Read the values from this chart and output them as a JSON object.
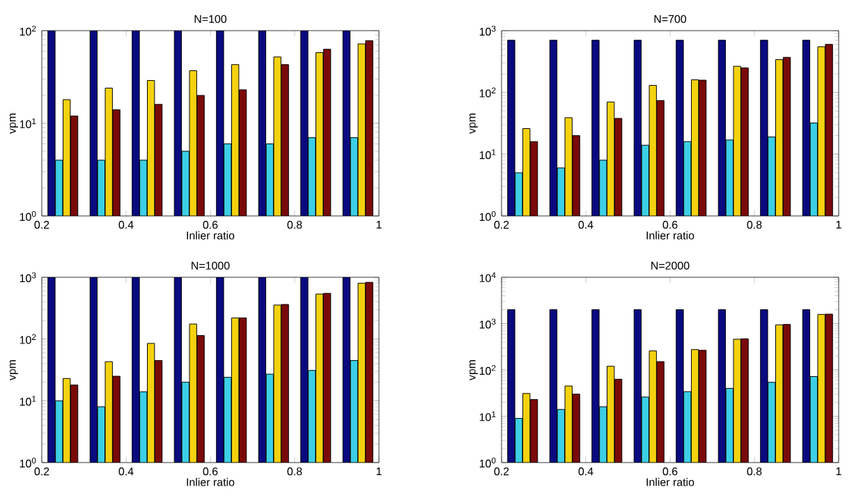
{
  "chart_data": [
    {
      "type": "bar",
      "title": "N=100",
      "xlabel": "Inlier ratio",
      "ylabel": "vpm",
      "log": "y",
      "xlim": [
        0.2,
        1
      ],
      "xticks": [
        0.2,
        0.4,
        0.6,
        0.8,
        1
      ],
      "ylim": [
        1,
        100
      ],
      "yticks": [
        {
          "value": 1,
          "label": "10$^{0}$"
        },
        {
          "value": 10,
          "label": "10$^{1}$"
        },
        {
          "value": 100,
          "label": "10$^{2}$"
        }
      ],
      "x": [
        0.25,
        0.35,
        0.45,
        0.55,
        0.65,
        0.75,
        0.85,
        0.95
      ],
      "series": [
        {
          "color": "#0a0a80",
          "values": [
            100,
            100,
            100,
            100,
            100,
            100,
            100,
            100
          ]
        },
        {
          "color": "#3ccfe6",
          "values": [
            4,
            4,
            4,
            5,
            6,
            6,
            7,
            7
          ]
        },
        {
          "color": "#f5d20f",
          "values": [
            18,
            24,
            29,
            37,
            43,
            52,
            58,
            72
          ]
        },
        {
          "color": "#7a0a0a",
          "values": [
            12,
            14,
            16,
            20,
            23,
            43,
            63,
            78
          ]
        }
      ]
    },
    {
      "type": "bar",
      "title": "N=700",
      "xlabel": "Inlier ratio",
      "ylabel": "vpm",
      "log": "y",
      "xlim": [
        0.2,
        1
      ],
      "xticks": [
        0.2,
        0.4,
        0.6,
        0.8,
        1
      ],
      "ylim": [
        1,
        1000
      ],
      "yticks": [
        {
          "value": 1,
          "label": "10$^{0}$"
        },
        {
          "value": 10,
          "label": "10$^{1}$"
        },
        {
          "value": 100,
          "label": "10$^{2}$"
        },
        {
          "value": 1000,
          "label": "10$^{3}$"
        }
      ],
      "x": [
        0.25,
        0.35,
        0.45,
        0.55,
        0.65,
        0.75,
        0.85,
        0.95
      ],
      "series": [
        {
          "color": "#0a0a80",
          "values": [
            700,
            700,
            700,
            700,
            700,
            700,
            700,
            700
          ]
        },
        {
          "color": "#3ccfe6",
          "values": [
            5,
            6,
            8,
            14,
            16,
            17,
            19,
            32
          ]
        },
        {
          "color": "#f5d20f",
          "values": [
            26,
            39,
            70,
            130,
            160,
            265,
            340,
            550
          ]
        },
        {
          "color": "#7a0a0a",
          "values": [
            16,
            20,
            38,
            74,
            158,
            250,
            370,
            600
          ]
        }
      ]
    },
    {
      "type": "bar",
      "title": "N=1000",
      "xlabel": "Inlier ratio",
      "ylabel": "vpm",
      "log": "y",
      "xlim": [
        0.2,
        1
      ],
      "xticks": [
        0.2,
        0.4,
        0.6,
        0.8,
        1
      ],
      "ylim": [
        1,
        1000
      ],
      "yticks": [
        {
          "value": 1,
          "label": "10$^{0}$"
        },
        {
          "value": 10,
          "label": "10$^{1}$"
        },
        {
          "value": 100,
          "label": "10$^{2}$"
        },
        {
          "value": 1000,
          "label": "10$^{3}$"
        }
      ],
      "x": [
        0.25,
        0.35,
        0.45,
        0.55,
        0.65,
        0.75,
        0.85,
        0.95
      ],
      "series": [
        {
          "color": "#0a0a80",
          "values": [
            1000,
            1000,
            1000,
            1000,
            1000,
            1000,
            1000,
            1000
          ]
        },
        {
          "color": "#3ccfe6",
          "values": [
            10,
            8,
            14,
            20,
            24,
            27,
            31,
            45
          ]
        },
        {
          "color": "#f5d20f",
          "values": [
            23,
            43,
            85,
            175,
            220,
            355,
            535,
            800
          ]
        },
        {
          "color": "#7a0a0a",
          "values": [
            18,
            25,
            45,
            114,
            220,
            363,
            549,
            830
          ]
        }
      ]
    },
    {
      "type": "bar",
      "title": "N=2000",
      "xlabel": "Inlier ratio",
      "ylabel": "vpm",
      "log": "y",
      "xlim": [
        0.2,
        1
      ],
      "xticks": [
        0.2,
        0.4,
        0.6,
        0.8,
        1
      ],
      "ylim": [
        1,
        10000
      ],
      "yticks": [
        {
          "value": 1,
          "label": "10$^{0}$"
        },
        {
          "value": 10,
          "label": "10$^{1}$"
        },
        {
          "value": 100,
          "label": "10$^{2}$"
        },
        {
          "value": 1000,
          "label": "10$^{3}$"
        },
        {
          "value": 10000,
          "label": "10$^{4}$"
        }
      ],
      "x": [
        0.25,
        0.35,
        0.45,
        0.55,
        0.65,
        0.75,
        0.85,
        0.95
      ],
      "series": [
        {
          "color": "#0a0a80",
          "values": [
            2000,
            2000,
            2000,
            2000,
            2000,
            2000,
            2000,
            2000
          ]
        },
        {
          "color": "#3ccfe6",
          "values": [
            9,
            14,
            16,
            26,
            34,
            40,
            54,
            72
          ]
        },
        {
          "color": "#f5d20f",
          "values": [
            31,
            45,
            120,
            257,
            275,
            460,
            940,
            1580
          ]
        },
        {
          "color": "#7a0a0a",
          "values": [
            23,
            30,
            63,
            151,
            265,
            470,
            960,
            1600
          ]
        }
      ]
    }
  ]
}
